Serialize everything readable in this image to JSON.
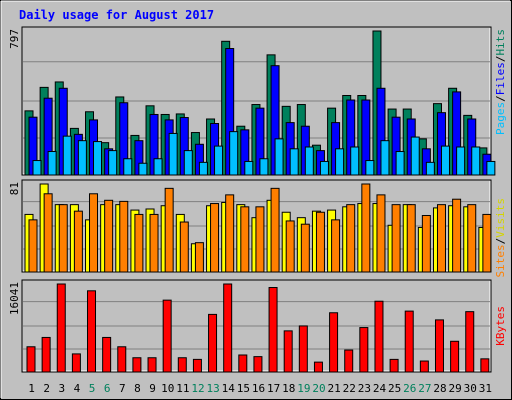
{
  "chart_data": {
    "type": "bar",
    "title": "Daily usage for August 2017",
    "categories": [
      "1",
      "2",
      "3",
      "4",
      "5",
      "6",
      "7",
      "8",
      "9",
      "10",
      "11",
      "12",
      "13",
      "14",
      "15",
      "16",
      "17",
      "18",
      "19",
      "20",
      "21",
      "22",
      "23",
      "24",
      "25",
      "26",
      "27",
      "28",
      "29",
      "30",
      "31"
    ],
    "weekend_days": [
      "5",
      "6",
      "12",
      "13",
      "19",
      "20",
      "26",
      "27"
    ],
    "panels": [
      {
        "name": "hits-files-pages",
        "max_label": "797",
        "ylim": [
          0,
          797
        ],
        "side_labels": [
          "Pages",
          "Files",
          "Hits"
        ],
        "series": [
          {
            "name": "Hits",
            "color": "#00805c",
            "values": [
              355,
              485,
              515,
              258,
              350,
              179,
              432,
              219,
              383,
              335,
              338,
              235,
              310,
              740,
              270,
              390,
              665,
              380,
              390,
              165,
              370,
              440,
              440,
              797,
              365,
              365,
              200,
              395,
              480,
              330,
              150
            ]
          },
          {
            "name": "Files",
            "color": "#0000ff",
            "values": [
              320,
              425,
              480,
              225,
              305,
              145,
              400,
              190,
              335,
              305,
              318,
              170,
              285,
              700,
              250,
              370,
              605,
              290,
              270,
              135,
              290,
              415,
              415,
              480,
              320,
              310,
              145,
              345,
              460,
              310,
              115
            ]
          },
          {
            "name": "Pages",
            "color": "#00bfff",
            "values": [
              80,
              130,
              215,
              190,
              185,
              135,
              90,
              65,
              90,
              230,
              135,
              70,
              160,
              240,
              75,
              90,
              200,
              145,
              155,
              75,
              145,
              155,
              80,
              190,
              130,
              210,
              70,
              160,
              155,
              155,
              75
            ]
          }
        ]
      },
      {
        "name": "visits-sites",
        "max_label": "81",
        "ylim": [
          0,
          81
        ],
        "side_labels": [
          "Sites",
          "Visits"
        ],
        "series": [
          {
            "name": "Visits",
            "color": "#ffff00",
            "values": [
              53,
              81,
              62,
              62,
              48,
              62,
              62,
              57,
              58,
              61,
              53,
              26,
              61,
              64,
              62,
              50,
              66,
              55,
              50,
              56,
              57,
              60,
              63,
              63,
              43,
              62,
              41,
              59,
              61,
              60,
              41
            ]
          },
          {
            "name": "Sites",
            "color": "#ff7f00",
            "values": [
              48,
              72,
              62,
              56,
              72,
              66,
              65,
              53,
              53,
              77,
              46,
              27,
              63,
              71,
              60,
              60,
              77,
              47,
              44,
              55,
              48,
              62,
              81,
              71,
              62,
              62,
              52,
              62,
              67,
              62,
              53
            ]
          }
        ]
      },
      {
        "name": "kbytes",
        "max_label": "16041",
        "ylim": [
          0,
          16041
        ],
        "side_labels": [
          "KBytes"
        ],
        "series": [
          {
            "name": "KBytes",
            "color": "#ff0000",
            "values": [
              4600,
              6300,
              16041,
              3300,
              14800,
              6300,
              4600,
              2600,
              2600,
              13100,
              2600,
              2300,
              10500,
              16041,
              3100,
              2800,
              15400,
              7500,
              8400,
              1800,
              10800,
              4000,
              8100,
              12900,
              2300,
              11100,
              2000,
              9500,
              5600,
              11000,
              2400
            ]
          }
        ]
      }
    ]
  }
}
